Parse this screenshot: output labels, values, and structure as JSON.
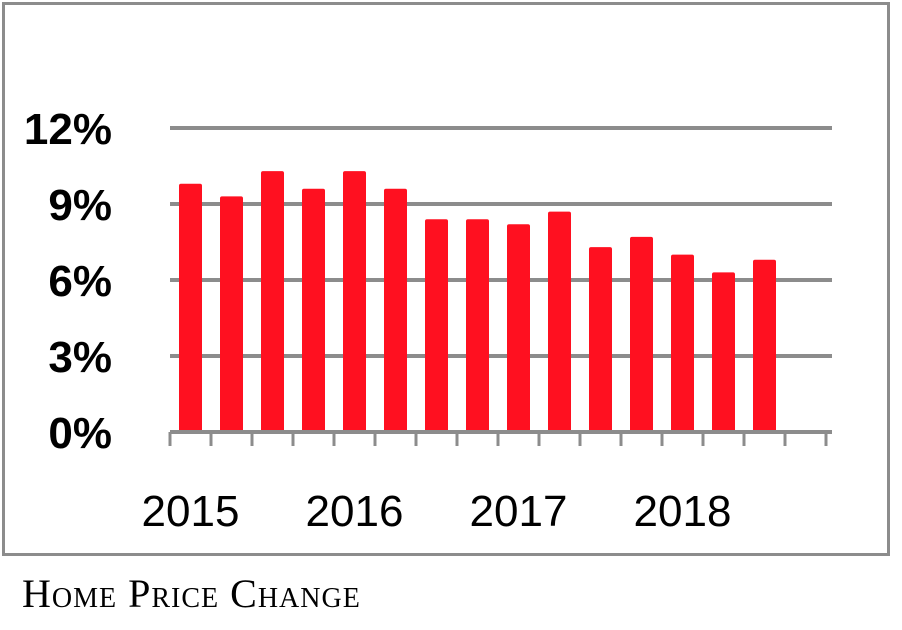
{
  "chart_data": {
    "type": "bar",
    "values": [
      9.8,
      9.3,
      10.3,
      9.6,
      10.3,
      9.6,
      8.4,
      8.4,
      8.2,
      8.7,
      7.3,
      7.7,
      7.0,
      6.3,
      6.8
    ],
    "year_labels": [
      "2015",
      "2016",
      "2017",
      "2018"
    ],
    "yticks": [
      "0%",
      "3%",
      "6%",
      "9%",
      "12%"
    ],
    "ytick_values": [
      0,
      3,
      6,
      9,
      12
    ],
    "ylim": [
      0,
      12
    ],
    "grid": true,
    "bar_color": "#ff1020",
    "grid_color": "#8c8c8c",
    "caption": "Home Price Change"
  }
}
